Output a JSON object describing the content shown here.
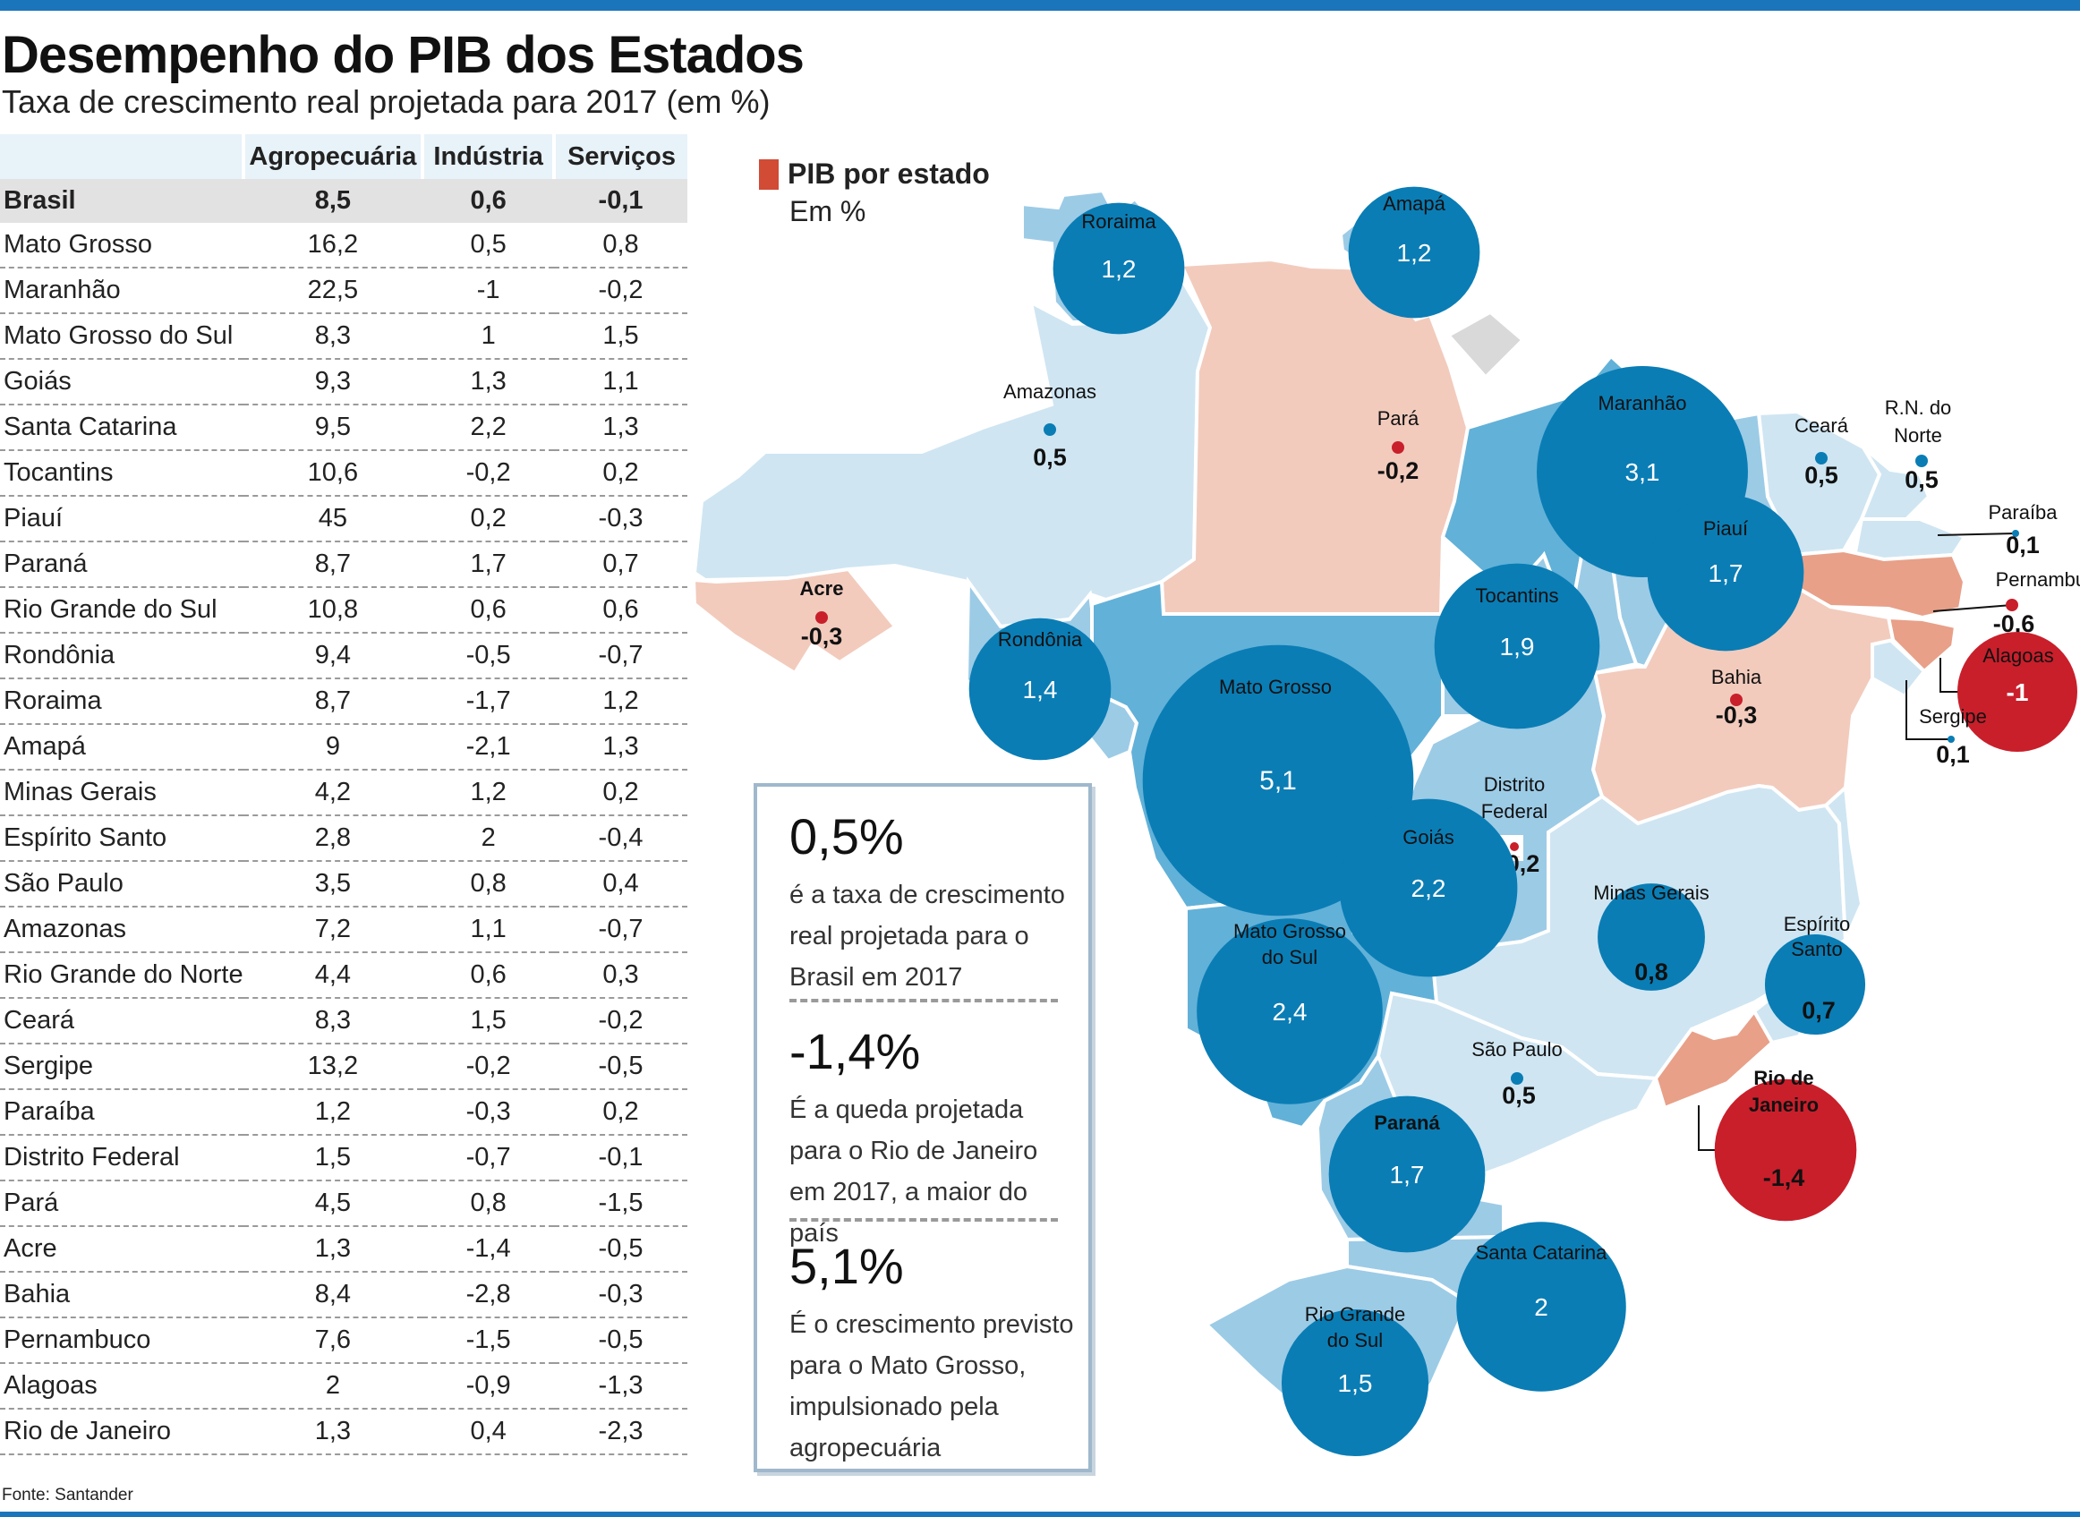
{
  "header": {
    "title": "Desempenho do PIB dos Estados",
    "subtitle": "Taxa de crescimento real projetada para 2017 (em %)"
  },
  "table": {
    "columns": [
      "",
      "Agropecuária",
      "Indústria",
      "Serviços"
    ],
    "brasil": {
      "state": "Brasil",
      "agro": "8,5",
      "ind": "0,6",
      "serv": "-0,1"
    },
    "rows": [
      {
        "state": "Mato Grosso",
        "agro": "16,2",
        "ind": "0,5",
        "serv": "0,8"
      },
      {
        "state": "Maranhão",
        "agro": "22,5",
        "ind": "-1",
        "serv": "-0,2"
      },
      {
        "state": "Mato Grosso do Sul",
        "agro": "8,3",
        "ind": "1",
        "serv": "1,5"
      },
      {
        "state": "Goiás",
        "agro": "9,3",
        "ind": "1,3",
        "serv": "1,1"
      },
      {
        "state": "Santa Catarina",
        "agro": "9,5",
        "ind": "2,2",
        "serv": "1,3"
      },
      {
        "state": "Tocantins",
        "agro": "10,6",
        "ind": "-0,2",
        "serv": "0,2"
      },
      {
        "state": "Piauí",
        "agro": "45",
        "ind": "0,2",
        "serv": "-0,3"
      },
      {
        "state": "Paraná",
        "agro": "8,7",
        "ind": "1,7",
        "serv": "0,7"
      },
      {
        "state": "Rio Grande do Sul",
        "agro": "10,8",
        "ind": "0,6",
        "serv": "0,6"
      },
      {
        "state": "Rondônia",
        "agro": "9,4",
        "ind": "-0,5",
        "serv": "-0,7"
      },
      {
        "state": "Roraima",
        "agro": "8,7",
        "ind": "-1,7",
        "serv": "1,2"
      },
      {
        "state": "Amapá",
        "agro": "9",
        "ind": "-2,1",
        "serv": "1,3"
      },
      {
        "state": "Minas Gerais",
        "agro": "4,2",
        "ind": "1,2",
        "serv": "0,2"
      },
      {
        "state": "Espírito Santo",
        "agro": "2,8",
        "ind": "2",
        "serv": "-0,4"
      },
      {
        "state": "São Paulo",
        "agro": "3,5",
        "ind": "0,8",
        "serv": "0,4"
      },
      {
        "state": "Amazonas",
        "agro": "7,2",
        "ind": "1,1",
        "serv": "-0,7"
      },
      {
        "state": "Rio Grande do Norte",
        "agro": "4,4",
        "ind": "0,6",
        "serv": "0,3"
      },
      {
        "state": "Ceará",
        "agro": "8,3",
        "ind": "1,5",
        "serv": "-0,2"
      },
      {
        "state": "Sergipe",
        "agro": "13,2",
        "ind": "-0,2",
        "serv": "-0,5"
      },
      {
        "state": "Paraíba",
        "agro": "1,2",
        "ind": "-0,3",
        "serv": "0,2"
      },
      {
        "state": "Distrito Federal",
        "agro": "1,5",
        "ind": "-0,7",
        "serv": "-0,1"
      },
      {
        "state": "Pará",
        "agro": "4,5",
        "ind": "0,8",
        "serv": "-1,5"
      },
      {
        "state": "Acre",
        "agro": "1,3",
        "ind": "-1,4",
        "serv": "-0,5"
      },
      {
        "state": "Bahia",
        "agro": "8,4",
        "ind": "-2,8",
        "serv": "-0,3"
      },
      {
        "state": "Pernambuco",
        "agro": "7,6",
        "ind": "-1,5",
        "serv": "-0,5"
      },
      {
        "state": "Alagoas",
        "agro": "2",
        "ind": "-0,9",
        "serv": "-1,3"
      },
      {
        "state": "Rio de Janeiro",
        "agro": "1,3",
        "ind": "0,4",
        "serv": "-2,3"
      }
    ]
  },
  "legend": {
    "title": "PIB por estado",
    "unit": "Em %"
  },
  "map": {
    "states": [
      {
        "id": "roraima",
        "name": "Roraima",
        "value": 1.2,
        "label": "1,2"
      },
      {
        "id": "amapa",
        "name": "Amapá",
        "value": 1.2,
        "label": "1,2"
      },
      {
        "id": "amazonas",
        "name": "Amazonas",
        "value": 0.5,
        "label": "0,5"
      },
      {
        "id": "para",
        "name": "Pará",
        "value": -0.2,
        "label": "-0,2"
      },
      {
        "id": "maranhao",
        "name": "Maranhão",
        "value": 3.1,
        "label": "3,1"
      },
      {
        "id": "ceara",
        "name": "Ceará",
        "value": 0.5,
        "label": "0,5"
      },
      {
        "id": "rn",
        "name": "R.N. do Norte",
        "value": 0.5,
        "label": "0,5"
      },
      {
        "id": "paraiba",
        "name": "Paraíba",
        "value": 0.1,
        "label": "0,1"
      },
      {
        "id": "pernambuco",
        "name": "Pernambuco",
        "value": -0.6,
        "label": "-0,6"
      },
      {
        "id": "alagoas",
        "name": "Alagoas",
        "value": -1,
        "label": "-1"
      },
      {
        "id": "sergipe",
        "name": "Sergipe",
        "value": 0.1,
        "label": "0,1"
      },
      {
        "id": "piaui",
        "name": "Piauí",
        "value": 1.7,
        "label": "1,7"
      },
      {
        "id": "acre",
        "name": "Acre",
        "value": -0.3,
        "label": "-0,3"
      },
      {
        "id": "rondonia",
        "name": "Rondônia",
        "value": 1.4,
        "label": "1,4"
      },
      {
        "id": "tocantins",
        "name": "Tocantins",
        "value": 1.9,
        "label": "1,9"
      },
      {
        "id": "matogrosso",
        "name": "Mato Grosso",
        "value": 5.1,
        "label": "5,1"
      },
      {
        "id": "bahia",
        "name": "Bahia",
        "value": -0.3,
        "label": "-0,3"
      },
      {
        "id": "df",
        "name": "Distrito Federal",
        "value": -0.2,
        "label": "-0,2"
      },
      {
        "id": "goias",
        "name": "Goiás",
        "value": 2.2,
        "label": "2,2"
      },
      {
        "id": "minas",
        "name": "Minas Gerais",
        "value": 0.8,
        "label": "0,8"
      },
      {
        "id": "es",
        "name": "Espírito Santo",
        "value": 0.7,
        "label": "0,7"
      },
      {
        "id": "ms",
        "name": "Mato Grosso do Sul",
        "value": 2.4,
        "label": "2,4"
      },
      {
        "id": "sp",
        "name": "São Paulo",
        "value": 0.5,
        "label": "0,5"
      },
      {
        "id": "rj",
        "name": "Rio de Janeiro",
        "value": -1.4,
        "label": "-1,4"
      },
      {
        "id": "parana",
        "name": "Paraná",
        "value": 1.7,
        "label": "1,7"
      },
      {
        "id": "sc",
        "name": "Santa Catarina",
        "value": 2,
        "label": "2"
      },
      {
        "id": "rs",
        "name": "Rio Grande do Sul",
        "value": 1.5,
        "label": "1,5"
      }
    ],
    "colors": {
      "pos_dark": "#62b1d8",
      "pos_mid": "#9ccbe6",
      "pos_light": "#cfe5f2",
      "neg_light": "#f2cbbd",
      "neg_mid": "#e8a088",
      "neg_dark": "#dd8a70",
      "bubble_pos": "#0a7db5",
      "bubble_neg": "#c91f2b",
      "gray": "#d9d9d9"
    }
  },
  "facts": [
    {
      "big": "0,5%",
      "text": "é a taxa de crescimento real projetada para o Brasil em 2017"
    },
    {
      "big": "-1,4%",
      "text": "É a queda projetada para o Rio de Janeiro em 2017, a maior do país"
    },
    {
      "big": "5,1%",
      "text": "É o crescimento previsto para o Mato Grosso, impulsionado pela agropecuária"
    }
  ],
  "source": "Fonte: Santander"
}
